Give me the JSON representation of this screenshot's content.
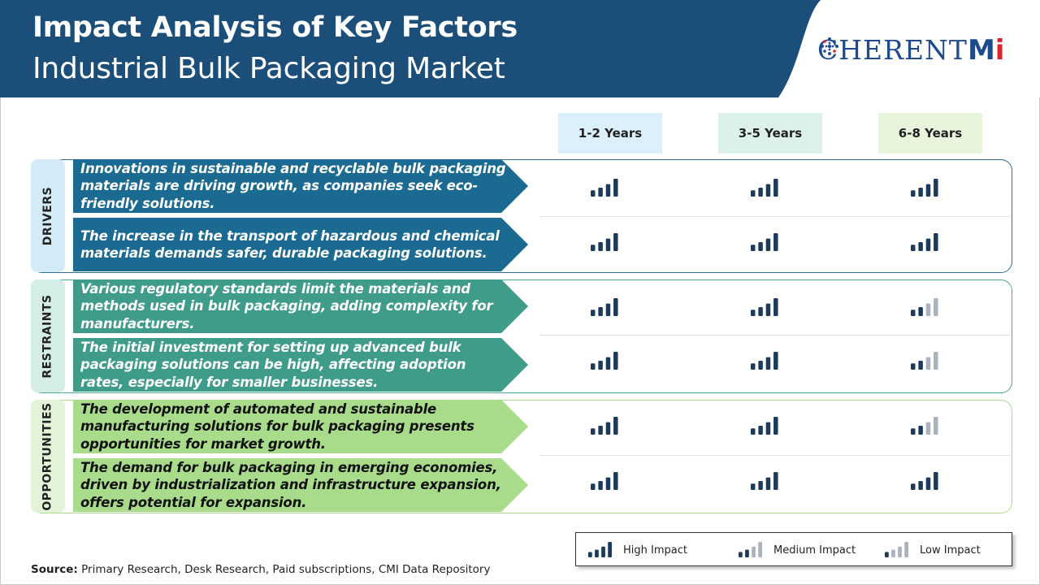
{
  "header": {
    "title": "Impact Analysis of Key Factors",
    "subtitle": "Industrial Bulk Packaging Market",
    "logo_text": "COHERENTMI",
    "colors": {
      "banner": "#1b4e79",
      "accent": "#2f82b6"
    }
  },
  "columns": [
    "1-2 Years",
    "3-5 Years",
    "6-8 Years"
  ],
  "chart_data": {
    "type": "table",
    "columns": [
      "1-2 Years",
      "3-5 Years",
      "6-8 Years"
    ],
    "groups": [
      {
        "name": "DRIVERS",
        "color": "#1b6a92",
        "rows": [
          {
            "factor": "Innovations in sustainable and recyclable bulk packaging materials are driving growth, as companies seek eco-friendly solutions.",
            "impact": [
              "High",
              "High",
              "High"
            ]
          },
          {
            "factor": "The increase in the transport of hazardous and chemical materials demands safer, durable packaging solutions.",
            "impact": [
              "High",
              "High",
              "High"
            ]
          }
        ]
      },
      {
        "name": "RESTRAINTS",
        "color": "#3f9c8a",
        "rows": [
          {
            "factor": "Various regulatory standards limit the materials and methods used in bulk packaging, adding complexity for manufacturers.",
            "impact": [
              "High",
              "High",
              "Medium"
            ]
          },
          {
            "factor": "The initial investment for setting up advanced bulk packaging solutions can be high, affecting adoption rates, especially for smaller businesses.",
            "impact": [
              "High",
              "High",
              "Medium"
            ]
          }
        ]
      },
      {
        "name": "OPPORTUNITIES",
        "color": "#a8dc8a",
        "rows": [
          {
            "factor": "The development of automated and sustainable manufacturing solutions for bulk packaging presents opportunities for market growth.",
            "impact": [
              "High",
              "High",
              "Medium"
            ]
          },
          {
            "factor": "The demand for bulk packaging in emerging economies, driven by industrialization and infrastructure expansion, offers potential for expansion.",
            "impact": [
              "High",
              "High",
              "High"
            ]
          }
        ]
      }
    ]
  },
  "legend": {
    "high": "High Impact",
    "medium": "Medium Impact",
    "low": "Low Impact"
  },
  "source": {
    "label": "Source:",
    "text": " Primary Research, Desk Research, Paid subscriptions, CMI Data Repository"
  }
}
